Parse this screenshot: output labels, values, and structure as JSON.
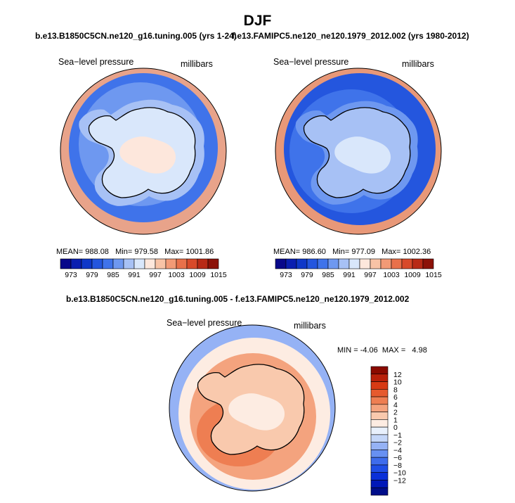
{
  "page_title": "DJF",
  "panel_left": {
    "title": "b.e13.B1850C5CN.ne120_g16.tuning.005 (yrs 1-24)",
    "field_label": "Sea−level pressure",
    "units_label": "millibars",
    "stats": {
      "mean_label": "MEAN=",
      "mean": "988.08",
      "min_label": "Min=",
      "min": "979.58",
      "max_label": "Max=",
      "max": "1001.86"
    }
  },
  "panel_right": {
    "title": "f.e13.FAMIPC5.ne120_ne120.1979_2012.002 (yrs 1980-2012)",
    "field_label": "Sea−level pressure",
    "units_label": "millibars",
    "stats": {
      "mean_label": "MEAN=",
      "mean": "986.60",
      "min_label": "Min=",
      "min": "977.09",
      "max_label": "Max=",
      "max": "1002.36"
    }
  },
  "panel_diff": {
    "title": "b.e13.B1850C5CN.ne120_g16.tuning.005 - f.e13.FAMIPC5.ne120_ne120.1979_2012.002",
    "field_label": "Sea−level pressure",
    "units_label": "millibars",
    "stats": {
      "min_label": "MIN =",
      "min": "-4.06",
      "max_label": "MAX =",
      "max": "4.98"
    }
  },
  "colorbar_abs": {
    "colors": [
      "#08088a",
      "#0a1fb0",
      "#0f38c8",
      "#2456de",
      "#3f73ea",
      "#6e98f0",
      "#a7c1f5",
      "#d9e7fb",
      "#fde7dc",
      "#f8c3a6",
      "#f29a76",
      "#e8704a",
      "#d84a2a",
      "#b82a16",
      "#8c1208"
    ],
    "tick_labels": [
      "973",
      "979",
      "985",
      "991",
      "997",
      "1003",
      "1009",
      "1015"
    ],
    "tick_edges": [
      1,
      3,
      5,
      7,
      9,
      11,
      13,
      15
    ]
  },
  "colorbar_diff": {
    "colors": [
      "#000e8a",
      "#0018b8",
      "#0a30d8",
      "#1f4ee6",
      "#3e6cec",
      "#6790f2",
      "#95b2f5",
      "#c4d6f8",
      "#e8f0fc",
      "#fdece2",
      "#f9c9ad",
      "#f4a37e",
      "#ee7e52",
      "#e65a2e",
      "#d73a14",
      "#b8200a",
      "#8a0a00"
    ],
    "tick_labels": [
      "12",
      "10",
      "8",
      "6",
      "4",
      "2",
      "1",
      "0",
      "−1",
      "−2",
      "−4",
      "−6",
      "−8",
      "−10",
      "−12"
    ]
  },
  "maps": {
    "left": {
      "ring_outer": "#e8a38a",
      "ring_mid": "#3f73ea",
      "ocean": "#6e98f0",
      "coast_band": "#a7c1f5",
      "interior": "#d9e7fb",
      "plateau": "#fde7dc"
    },
    "right": {
      "ring_outer": "#e89878",
      "ring_mid": "#2456de",
      "ocean": "#3f73ea",
      "coast_band": "#6e98f0",
      "interior": "#a7c1f5",
      "plateau": "#d9e7fb"
    },
    "diff": {
      "ring_outer": "#95b2f5",
      "ring_mid": "#fdece2",
      "ocean": "#f4a37e",
      "coast_band": "#ee7e52",
      "interior": "#f9c9ad",
      "plateau": "#fdece2"
    }
  }
}
